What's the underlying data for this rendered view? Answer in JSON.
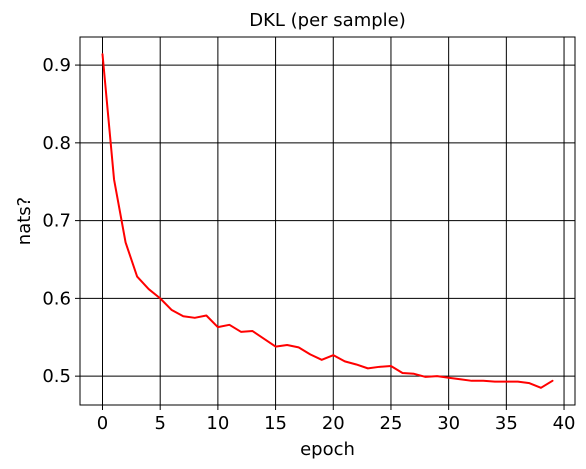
{
  "chart_data": {
    "type": "line",
    "title": "DKL (per sample)",
    "xlabel": "epoch",
    "ylabel": "nats?",
    "xlim": [
      -1.95,
      40.95
    ],
    "ylim": [
      0.4629,
      0.9361
    ],
    "xticks": [
      0,
      5,
      10,
      15,
      20,
      25,
      30,
      35,
      40
    ],
    "xtick_labels": [
      "0",
      "5",
      "10",
      "15",
      "20",
      "25",
      "30",
      "35",
      "40"
    ],
    "yticks": [
      0.5,
      0.6,
      0.7,
      0.8,
      0.9
    ],
    "ytick_labels": [
      "0.5",
      "0.6",
      "0.7",
      "0.8",
      "0.9"
    ],
    "grid": true,
    "grid_color": "#000000",
    "series": [
      {
        "color": "#ff0000",
        "x": [
          0,
          1,
          2,
          3,
          4,
          5,
          6,
          7,
          8,
          9,
          10,
          11,
          12,
          13,
          14,
          15,
          16,
          17,
          18,
          19,
          20,
          21,
          22,
          23,
          24,
          25,
          26,
          27,
          28,
          29,
          30,
          31,
          32,
          33,
          34,
          35,
          36,
          37,
          38,
          39
        ],
        "y": [
          0.914,
          0.753,
          0.672,
          0.628,
          0.612,
          0.6,
          0.585,
          0.577,
          0.575,
          0.578,
          0.563,
          0.566,
          0.557,
          0.558,
          0.548,
          0.538,
          0.54,
          0.537,
          0.528,
          0.521,
          0.527,
          0.519,
          0.515,
          0.51,
          0.512,
          0.513,
          0.504,
          0.503,
          0.499,
          0.5,
          0.498,
          0.496,
          0.494,
          0.494,
          0.493,
          0.493,
          0.493,
          0.491,
          0.485,
          0.494
        ]
      }
    ]
  }
}
